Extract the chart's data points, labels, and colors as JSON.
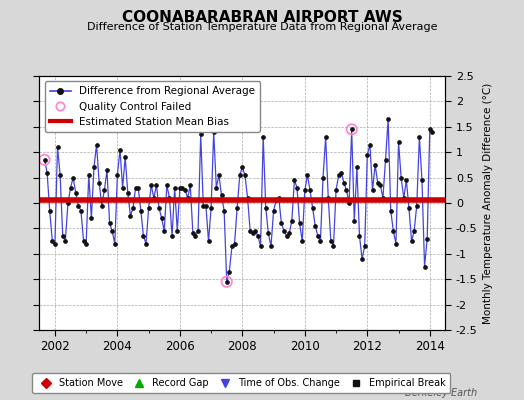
{
  "title": "COONABARABRAN AIRPORT AWS",
  "subtitle": "Difference of Station Temperature Data from Regional Average",
  "ylabel": "Monthly Temperature Anomaly Difference (°C)",
  "mean_bias": 0.05,
  "bias_color": "#cc0000",
  "line_color": "#4444dd",
  "marker_color": "#111111",
  "qc_failed_color": "#ff88cc",
  "bg_color": "#d8d8d8",
  "plot_bg_color": "#ffffff",
  "xlim": [
    2001.5,
    2014.5
  ],
  "ylim": [
    -2.5,
    2.5
  ],
  "xlabel_years": [
    2002,
    2004,
    2006,
    2008,
    2010,
    2012,
    2014
  ],
  "yticks": [
    -2.5,
    -2.0,
    -1.5,
    -1.0,
    -0.5,
    0.0,
    0.5,
    1.0,
    1.5,
    2.0,
    2.5
  ],
  "watermark": "Berkeley Earth",
  "times": [
    2001.667,
    2001.75,
    2001.833,
    2001.917,
    2002.0,
    2002.083,
    2002.167,
    2002.25,
    2002.333,
    2002.417,
    2002.5,
    2002.583,
    2002.667,
    2002.75,
    2002.833,
    2002.917,
    2003.0,
    2003.083,
    2003.167,
    2003.25,
    2003.333,
    2003.417,
    2003.5,
    2003.583,
    2003.667,
    2003.75,
    2003.833,
    2003.917,
    2004.0,
    2004.083,
    2004.167,
    2004.25,
    2004.333,
    2004.417,
    2004.5,
    2004.583,
    2004.667,
    2004.75,
    2004.833,
    2004.917,
    2005.0,
    2005.083,
    2005.167,
    2005.25,
    2005.333,
    2005.417,
    2005.5,
    2005.583,
    2005.667,
    2005.75,
    2005.833,
    2005.917,
    2006.0,
    2006.083,
    2006.167,
    2006.25,
    2006.333,
    2006.417,
    2006.5,
    2006.583,
    2006.667,
    2006.75,
    2006.833,
    2006.917,
    2007.0,
    2007.083,
    2007.167,
    2007.25,
    2007.333,
    2007.417,
    2007.5,
    2007.583,
    2007.667,
    2007.75,
    2007.833,
    2007.917,
    2008.0,
    2008.083,
    2008.167,
    2008.25,
    2008.333,
    2008.417,
    2008.5,
    2008.583,
    2008.667,
    2008.75,
    2008.833,
    2008.917,
    2009.0,
    2009.083,
    2009.167,
    2009.25,
    2009.333,
    2009.417,
    2009.5,
    2009.583,
    2009.667,
    2009.75,
    2009.833,
    2009.917,
    2010.0,
    2010.083,
    2010.167,
    2010.25,
    2010.333,
    2010.417,
    2010.5,
    2010.583,
    2010.667,
    2010.75,
    2010.833,
    2010.917,
    2011.0,
    2011.083,
    2011.167,
    2011.25,
    2011.333,
    2011.417,
    2011.5,
    2011.583,
    2011.667,
    2011.75,
    2011.833,
    2011.917,
    2012.0,
    2012.083,
    2012.167,
    2012.25,
    2012.333,
    2012.417,
    2012.5,
    2012.583,
    2012.667,
    2012.75,
    2012.833,
    2012.917,
    2013.0,
    2013.083,
    2013.167,
    2013.25,
    2013.333,
    2013.417,
    2013.5,
    2013.583,
    2013.667,
    2013.75,
    2013.833,
    2013.917,
    2014.0,
    2014.083
  ],
  "values": [
    0.85,
    0.6,
    -0.15,
    -0.75,
    -0.8,
    1.1,
    0.55,
    -0.65,
    -0.75,
    0.0,
    0.3,
    0.5,
    0.2,
    -0.05,
    -0.15,
    -0.75,
    -0.8,
    0.55,
    -0.3,
    0.7,
    1.15,
    0.4,
    -0.05,
    0.25,
    0.65,
    -0.4,
    -0.55,
    -0.8,
    0.55,
    1.05,
    0.3,
    0.9,
    0.2,
    -0.25,
    -0.1,
    0.3,
    0.3,
    -0.15,
    -0.65,
    -0.8,
    -0.1,
    0.35,
    0.1,
    0.35,
    -0.1,
    -0.3,
    -0.55,
    0.35,
    0.1,
    -0.65,
    0.3,
    -0.55,
    0.3,
    0.3,
    0.25,
    0.1,
    0.35,
    -0.6,
    -0.65,
    -0.55,
    1.35,
    -0.05,
    -0.05,
    -0.75,
    -0.1,
    1.4,
    0.3,
    0.55,
    0.15,
    -0.15,
    -1.55,
    -1.35,
    -0.85,
    -0.8,
    -0.1,
    0.55,
    0.7,
    0.55,
    0.1,
    -0.55,
    -0.6,
    -0.55,
    -0.65,
    -0.85,
    1.3,
    -0.1,
    -0.6,
    -0.85,
    -0.15,
    0.05,
    0.1,
    -0.4,
    -0.55,
    -0.65,
    -0.6,
    -0.35,
    0.45,
    0.3,
    -0.4,
    -0.75,
    0.25,
    0.55,
    0.25,
    -0.1,
    -0.45,
    -0.65,
    -0.75,
    0.5,
    1.3,
    0.1,
    -0.75,
    -0.85,
    0.25,
    0.55,
    0.6,
    0.4,
    0.25,
    0.0,
    1.45,
    -0.35,
    0.7,
    -0.65,
    -1.1,
    -0.85,
    0.95,
    1.15,
    0.25,
    0.75,
    0.4,
    0.35,
    0.1,
    0.85,
    1.65,
    -0.15,
    -0.55,
    -0.8,
    1.2,
    0.5,
    0.1,
    0.45,
    -0.1,
    -0.75,
    -0.55,
    -0.05,
    1.3,
    0.45,
    -1.25,
    -0.7,
    1.45,
    1.4
  ],
  "qc_failed_times": [
    2001.667,
    2007.5,
    2011.5
  ],
  "qc_failed_values": [
    0.85,
    -1.55,
    1.45
  ]
}
